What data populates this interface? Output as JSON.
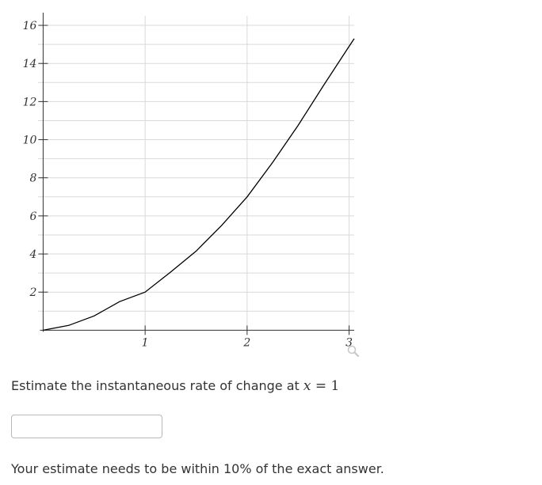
{
  "chart_data": {
    "type": "line",
    "xlim": [
      -0.05,
      3.05
    ],
    "ylim": [
      -0.4,
      16.5
    ],
    "x_ticks": [
      1,
      2,
      3
    ],
    "x_tick_labels": [
      "1",
      "2",
      "3"
    ],
    "y_ticks": [
      2,
      4,
      6,
      8,
      10,
      12,
      14,
      16
    ],
    "y_tick_labels": [
      "2",
      "4",
      "6",
      "8",
      "10",
      "12",
      "14",
      "16"
    ],
    "grid": true,
    "minor_y_grid_step": 1,
    "series": [
      {
        "x": [
          0,
          0.25,
          0.5,
          0.75,
          1,
          1.25,
          1.5,
          1.75,
          2,
          2.25,
          2.5,
          2.75,
          3,
          3.05
        ],
        "y": [
          0,
          0.25,
          0.75,
          1.5,
          2,
          3.05,
          4.15,
          5.5,
          7,
          8.8,
          10.75,
          12.85,
          14.9,
          15.3
        ],
        "color": "#000000"
      }
    ]
  },
  "zoom_icon": "magnifier-icon",
  "question": {
    "prompt_text": "Estimate the instantaneous rate of change at",
    "var": "x",
    "eq": "=",
    "value": "1"
  },
  "answer": {
    "value": "",
    "placeholder": ""
  },
  "note": "Your estimate needs to be within 10% of the exact answer."
}
